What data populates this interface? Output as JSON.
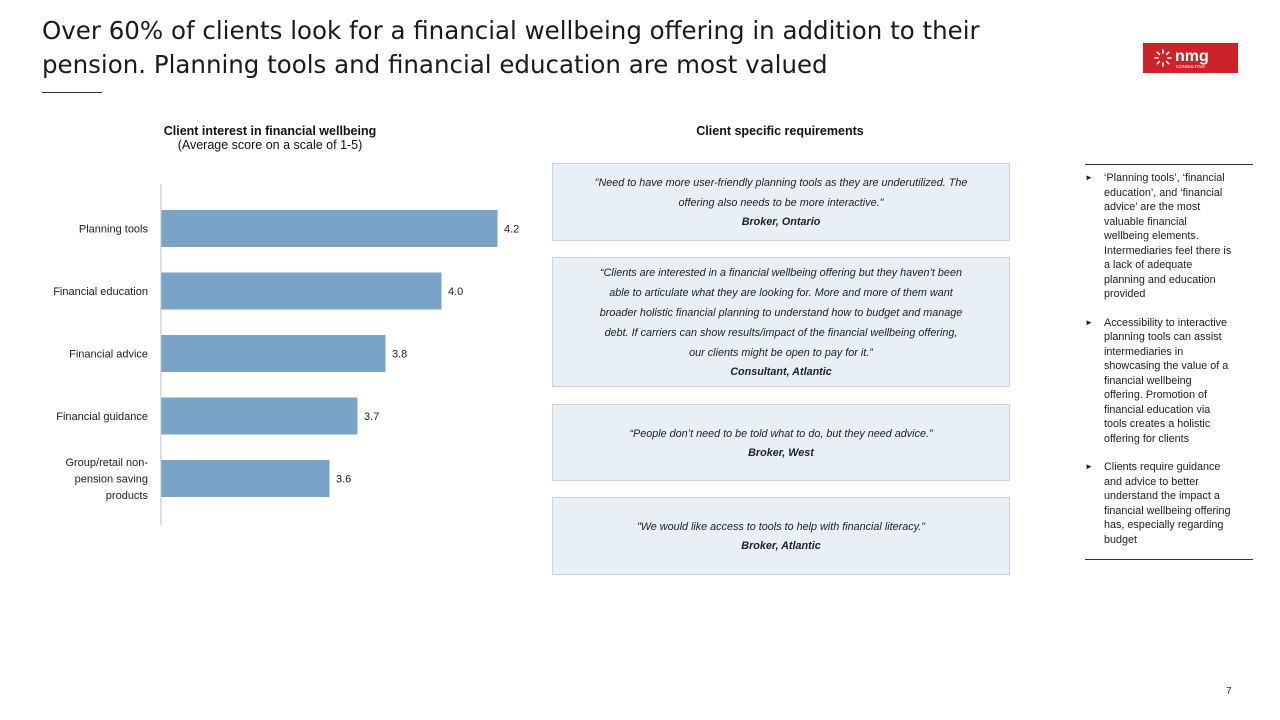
{
  "slide": {
    "title": "Over 60% of clients look for a financial wellbeing offering in addition to their pension. Planning tools and financial education are most valued",
    "page_number": "7"
  },
  "logo": {
    "text": "nmg",
    "subtext": "CONSULTING",
    "colors": {
      "background": "#cc2229",
      "foreground": "#ffffff"
    }
  },
  "chart_panel": {
    "title": "Client interest in financial wellbeing",
    "subtitle": "(Average score on a scale of 1-5)"
  },
  "chart_data": {
    "type": "bar",
    "orientation": "horizontal",
    "categories": [
      "Planning tools",
      "Financial education",
      "Financial advice",
      "Financial guidance",
      "Group/retail non-pension saving products"
    ],
    "category_lines": [
      [
        "Planning tools"
      ],
      [
        "Financial education"
      ],
      [
        "Financial advice"
      ],
      [
        "Financial guidance"
      ],
      [
        "Group/retail non-",
        "pension saving",
        "products"
      ]
    ],
    "values": [
      4.2,
      4.0,
      3.8,
      3.7,
      3.6
    ],
    "labels": [
      "4.2",
      "4.0",
      "3.8",
      "3.7",
      "3.6"
    ],
    "xlim": [
      3.0,
      4.2
    ],
    "bar_color": "#7aa3c8",
    "axis_color": "#bfbfbf",
    "grid": false,
    "legend": "none"
  },
  "quotes_panel": {
    "title": "Client specific requirements",
    "quotes": [
      {
        "lines": [
          "\"Need to have more user-friendly planning tools as they are underutilized. The",
          "offering also needs to be more interactive.\""
        ],
        "source": "Broker, Ontario"
      },
      {
        "lines": [
          "“Clients are interested in a financial wellbeing offering but they haven’t been",
          "able to articulate what they are looking for. More and more of them want",
          "broader holistic financial planning to understand how to budget and manage",
          "debt. If carriers can show results/impact of the financial wellbeing offering,",
          "our clients might be open to pay for it.”"
        ],
        "source": "Consultant, Atlantic"
      },
      {
        "lines": [
          "“People don’t need to be told what to do, but they need advice.”"
        ],
        "source": "Broker, West"
      },
      {
        "lines": [
          "\"We would like access to tools to help with financial literacy.\""
        ],
        "source": "Broker, Atlantic"
      }
    ]
  },
  "sidebar": {
    "bullet_icon": "triangle-right-icon",
    "bullets": [
      {
        "lines": [
          "‘Planning tools’, ‘financial",
          "education’, and ‘financial",
          "advice’ are the most",
          "valuable financial",
          "wellbeing elements.",
          "Intermediaries feel there is",
          "a lack of adequate",
          "planning and education",
          "provided"
        ]
      },
      {
        "lines": [
          "Accessibility to interactive",
          "planning tools can assist",
          "intermediaries in",
          "showcasing the value of a",
          "financial wellbeing",
          "offering. Promotion of",
          "financial education via",
          "tools creates a holistic",
          "offering for clients"
        ]
      },
      {
        "lines": [
          "Clients require guidance",
          "and advice to better",
          "understand the impact a",
          "financial wellbeing offering",
          "has, especially regarding",
          "budget"
        ]
      }
    ]
  }
}
